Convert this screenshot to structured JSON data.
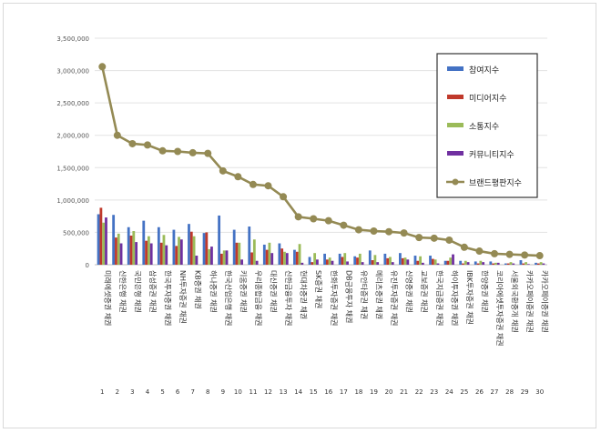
{
  "chart_data": {
    "type": "bar",
    "ylim": [
      0,
      3500000
    ],
    "yticks": [
      "0",
      "500,000",
      "1,000,000",
      "1,500,000",
      "2,000,000",
      "2,500,000",
      "3,000,000",
      "3,500,000"
    ],
    "grid": true,
    "legend_position": "right",
    "categories": [
      "미래에셋증권 채권",
      "신한은행 채권",
      "국민은행 채권",
      "삼성증권 채권",
      "한국투자증권 채권",
      "NH투자증권 채권",
      "KB증권 채권",
      "하나증권 채권",
      "한국산업은행 채권",
      "키움증권 채권",
      "우리종합금융 채권",
      "대신증권 채권",
      "신한금융투자 채권",
      "현대차증권 채권",
      "SK증권 채권",
      "한화투자증권 채권",
      "DB금융투자 채권",
      "유안타증권 채권",
      "메리츠증권 채권",
      "유진투자증권 채권",
      "신영증권 채권",
      "교보증권 채권",
      "한국지급증권 채권",
      "하이투자증권 채권",
      "IBK투자증권 채권",
      "한양증권 채권",
      "코리아에셋투자증권 채권",
      "서울외국환중개 채권",
      "카카오페이증권 채권",
      "카카오페이증권 채권"
    ],
    "index_labels": [
      "1",
      "2",
      "3",
      "4",
      "5",
      "6",
      "7",
      "8",
      "9",
      "10",
      "11",
      "12",
      "13",
      "14",
      "15",
      "16",
      "17",
      "18",
      "19",
      "20",
      "21",
      "22",
      "23",
      "24",
      "25",
      "26",
      "27",
      "28",
      "29",
      "30"
    ],
    "series": [
      {
        "name": "참여지수",
        "kind": "bar",
        "color": "#4472c4",
        "values": [
          780000,
          770000,
          580000,
          680000,
          580000,
          540000,
          630000,
          490000,
          760000,
          540000,
          590000,
          310000,
          330000,
          230000,
          120000,
          170000,
          170000,
          130000,
          220000,
          170000,
          180000,
          140000,
          140000,
          60000,
          60000,
          50000,
          50000,
          20000,
          70000,
          30000
        ]
      },
      {
        "name": "미디어지수",
        "kind": "bar",
        "color": "#c0392b",
        "values": [
          880000,
          420000,
          450000,
          370000,
          340000,
          290000,
          510000,
          500000,
          170000,
          340000,
          190000,
          230000,
          250000,
          200000,
          40000,
          80000,
          120000,
          110000,
          70000,
          100000,
          100000,
          60000,
          90000,
          60000,
          20000,
          20000,
          20000,
          20000,
          20000,
          20000
        ]
      },
      {
        "name": "소통지수",
        "kind": "bar",
        "color": "#9bbb59",
        "values": [
          650000,
          480000,
          520000,
          440000,
          460000,
          430000,
          440000,
          240000,
          220000,
          340000,
          390000,
          340000,
          200000,
          320000,
          180000,
          110000,
          180000,
          170000,
          150000,
          120000,
          110000,
          130000,
          80000,
          110000,
          60000,
          60000,
          30000,
          40000,
          40000,
          40000
        ]
      },
      {
        "name": "커뮤니티지수",
        "kind": "bar",
        "color": "#7030a0",
        "values": [
          730000,
          330000,
          350000,
          330000,
          300000,
          390000,
          140000,
          280000,
          220000,
          80000,
          60000,
          180000,
          180000,
          30000,
          80000,
          60000,
          50000,
          40000,
          40000,
          40000,
          80000,
          30000,
          20000,
          160000,
          40000,
          40000,
          30000,
          20000,
          10000,
          20000
        ]
      },
      {
        "name": "브랜드평판지수",
        "kind": "line",
        "color": "#948a54",
        "values": [
          3060000,
          2000000,
          1870000,
          1850000,
          1760000,
          1750000,
          1730000,
          1720000,
          1450000,
          1360000,
          1240000,
          1220000,
          1050000,
          740000,
          710000,
          680000,
          610000,
          540000,
          520000,
          510000,
          490000,
          420000,
          410000,
          380000,
          270000,
          210000,
          170000,
          160000,
          150000,
          140000
        ]
      }
    ]
  }
}
